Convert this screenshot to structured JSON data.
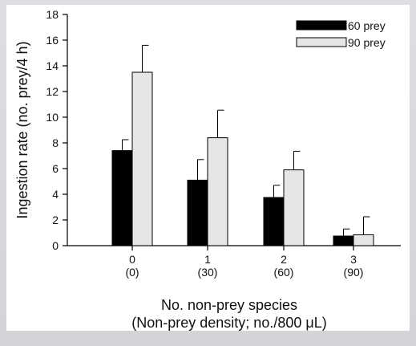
{
  "chart_data": {
    "type": "bar",
    "ylabel": "Ingestion rate (no. prey/4 h)",
    "xlabel_line1": "No. non-prey species",
    "xlabel_line2": "(Non-prey density; no./800 μL)",
    "ylim": [
      0,
      18
    ],
    "yticks": [
      0,
      2,
      4,
      6,
      8,
      10,
      12,
      14,
      16,
      18
    ],
    "categories": [
      "0",
      "1",
      "2",
      "3"
    ],
    "category_sublabels": [
      "(0)",
      "(30)",
      "(60)",
      "(90)"
    ],
    "series": [
      {
        "name": "60 prey",
        "color": "#000000",
        "values": [
          7.4,
          5.1,
          3.75,
          0.75
        ],
        "errors": [
          0.85,
          1.6,
          0.95,
          0.55
        ]
      },
      {
        "name": "90 prey",
        "color": "#e6e6e6",
        "values": [
          13.5,
          8.4,
          5.9,
          0.85
        ],
        "errors": [
          2.1,
          2.15,
          1.45,
          1.4
        ]
      }
    ],
    "legend_position": "top-right",
    "grid": false
  }
}
